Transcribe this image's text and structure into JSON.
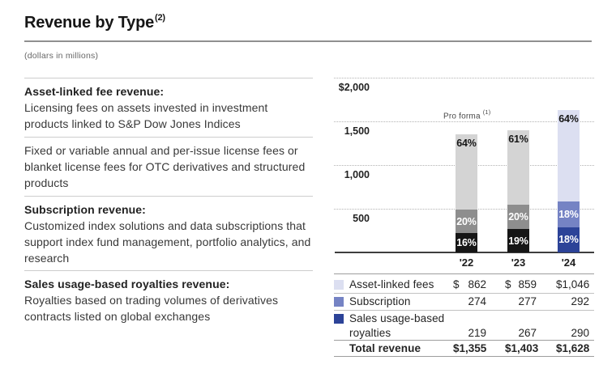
{
  "header": {
    "title": "Revenue by Type",
    "footnote": "(2)",
    "subtitle": "(dollars in millions)"
  },
  "descriptions": [
    {
      "heading": "Asset-linked fee revenue:",
      "body": "Licensing fees on assets invested in investment products linked to S&P Dow Jones Indices"
    },
    {
      "heading": "",
      "body": "Fixed or variable annual and per-issue license fees or blanket license fees for OTC derivatives and structured products"
    },
    {
      "heading": "Subscription revenue:",
      "body": "Customized index solutions and data subscriptions that support index fund management, portfolio analytics, and research"
    },
    {
      "heading": "Sales usage-based royalties revenue:",
      "body": "Royalties based on trading volumes of derivatives contracts listed on global exchanges"
    }
  ],
  "chart_data": {
    "type": "bar",
    "stacked": true,
    "categories": [
      "'22",
      "'23",
      "'24"
    ],
    "series": [
      {
        "name": "Asset-linked fees",
        "values": [
          862,
          859,
          1046
        ],
        "pct_labels": [
          "64%",
          "61%",
          "64%"
        ],
        "colors": [
          "#d4d4d4",
          "#d4d4d4",
          "#dcdff1"
        ]
      },
      {
        "name": "Subscription",
        "values": [
          274,
          277,
          292
        ],
        "pct_labels": [
          "20%",
          "20%",
          "18%"
        ],
        "colors": [
          "#8e8e8e",
          "#8e8e8e",
          "#7583c4"
        ]
      },
      {
        "name": "Sales usage-based royalties",
        "values": [
          219,
          267,
          290
        ],
        "pct_labels": [
          "16%",
          "19%",
          "18%"
        ],
        "colors": [
          "#161616",
          "#161616",
          "#2c4398"
        ]
      }
    ],
    "totals": [
      1355,
      1403,
      1628
    ],
    "annotation": "Pro forma",
    "annotation_sup": "(1)",
    "y_ticks": [
      "$2,000",
      "1,500",
      "1,000",
      "500"
    ],
    "y_tick_values": [
      2000,
      1500,
      1000,
      500
    ],
    "ylim": [
      0,
      2080
    ],
    "grid": "dotted-horizontal",
    "legend_position": "table-below"
  },
  "table": {
    "rows": [
      {
        "swatch": "#dcdff1",
        "label": "Asset-linked fees",
        "label_line2": "",
        "dollars": [
          "$",
          "$",
          "$"
        ],
        "values": [
          "862",
          "859",
          "1,046"
        ],
        "is_total": false
      },
      {
        "swatch": "#7583c4",
        "label": "Subscription",
        "label_line2": "",
        "dollars": [
          "",
          "",
          ""
        ],
        "values": [
          "274",
          "277",
          "292"
        ],
        "is_total": false
      },
      {
        "swatch": "#2c4398",
        "label": "Sales usage-based",
        "label_line2": "royalties",
        "dollars": [
          "",
          "",
          ""
        ],
        "values": [
          "219",
          "267",
          "290"
        ],
        "is_total": false
      },
      {
        "swatch": "",
        "label": "Total revenue",
        "label_line2": "",
        "dollars": [
          "$",
          "$",
          "$"
        ],
        "values": [
          "1,355",
          "1,403",
          "1,628"
        ],
        "is_total": true
      }
    ]
  }
}
